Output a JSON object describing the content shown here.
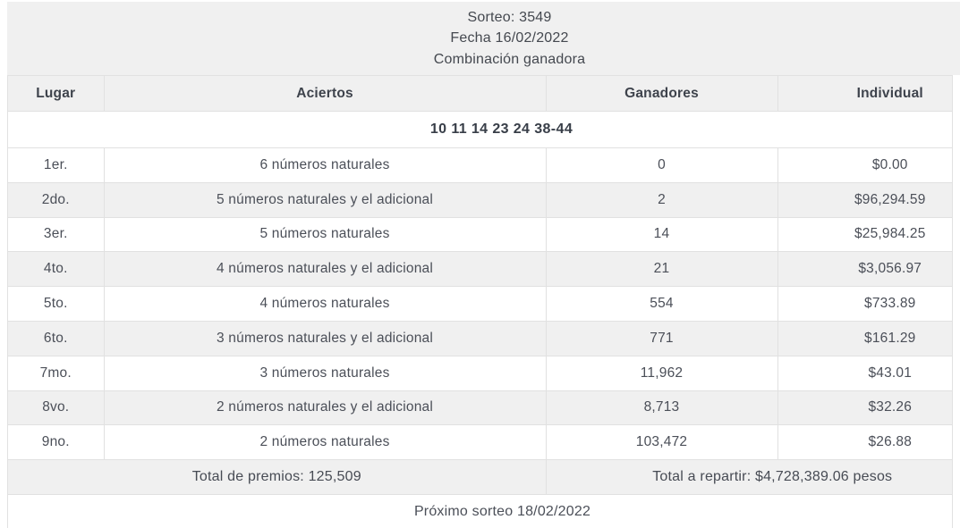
{
  "top": {
    "sorteo": "Sorteo: 3549",
    "fecha": "Fecha 16/02/2022",
    "combinacion_label": "Combinación ganadora"
  },
  "winning_numbers": "10 11 14 23 24 38-44",
  "table": {
    "columns": [
      "Lugar",
      "Aciertos",
      "Ganadores",
      "Individual"
    ],
    "rows": [
      [
        "1er.",
        "6 números naturales",
        "0",
        "$0.00"
      ],
      [
        "2do.",
        "5 números naturales y el adicional",
        "2",
        "$96,294.59"
      ],
      [
        "3er.",
        "5 números naturales",
        "14",
        "$25,984.25"
      ],
      [
        "4to.",
        "4 números naturales y el adicional",
        "21",
        "$3,056.97"
      ],
      [
        "5to.",
        "4 números naturales",
        "554",
        "$733.89"
      ],
      [
        "6to.",
        "3 números naturales y el adicional",
        "771",
        "$161.29"
      ],
      [
        "7mo.",
        "3 números naturales",
        "11,962",
        "$43.01"
      ],
      [
        "8vo.",
        "2 números naturales y el adicional",
        "8,713",
        "$32.26"
      ],
      [
        "9no.",
        "2 números naturales",
        "103,472",
        "$26.88"
      ]
    ],
    "totals": {
      "premios": "Total de premios: 125,509",
      "repartir": "Total a repartir: $4,728,389.06 pesos"
    }
  },
  "footer": {
    "proximo": "Próximo sorteo 18/02/2022"
  },
  "colors": {
    "band_bg": "#f0f0f0",
    "border": "#e1e1e1",
    "text": "#474b54"
  }
}
